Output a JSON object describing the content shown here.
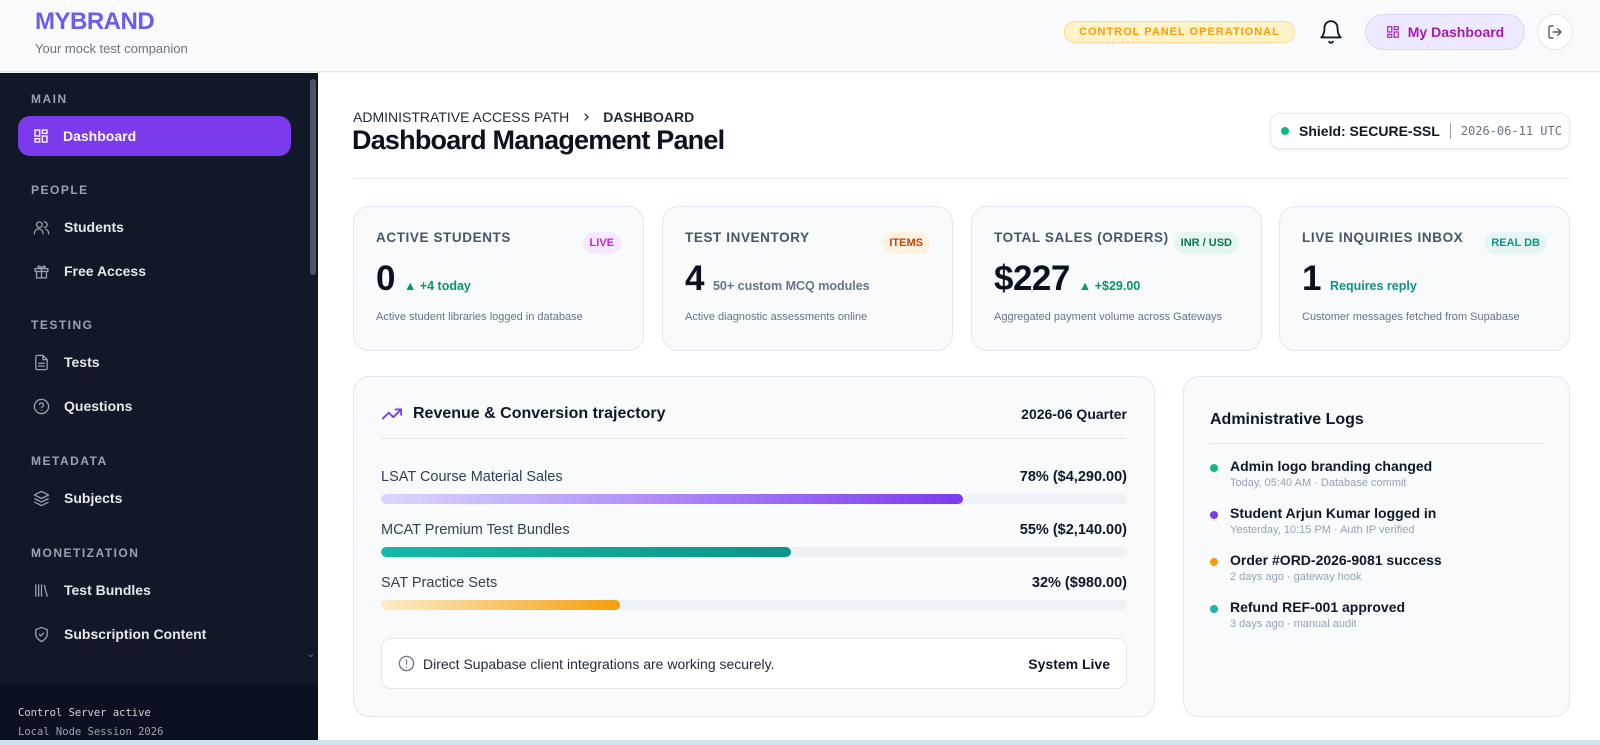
{
  "header": {
    "brand": "MYBRAND",
    "tagline": "Your mock test companion",
    "status": "CONTROL PANEL OPERATIONAL",
    "dashboard_button": "My Dashboard"
  },
  "sidebar": {
    "sections": [
      {
        "label": "MAIN",
        "items": [
          {
            "label": "Dashboard",
            "icon": "grid-icon",
            "active": true
          }
        ]
      },
      {
        "label": "PEOPLE",
        "items": [
          {
            "label": "Students",
            "icon": "users-icon"
          },
          {
            "label": "Free Access",
            "icon": "gift-icon"
          }
        ]
      },
      {
        "label": "TESTING",
        "items": [
          {
            "label": "Tests",
            "icon": "file-text-icon"
          },
          {
            "label": "Questions",
            "icon": "help-circle-icon"
          }
        ]
      },
      {
        "label": "METADATA",
        "items": [
          {
            "label": "Subjects",
            "icon": "layers-icon"
          }
        ]
      },
      {
        "label": "MONETIZATION",
        "items": [
          {
            "label": "Test Bundles",
            "icon": "library-icon"
          },
          {
            "label": "Subscription Content",
            "icon": "shield-icon"
          }
        ]
      }
    ],
    "footer_line1": "Control Server active",
    "footer_line2": "Local Node Session 2026"
  },
  "main": {
    "breadcrumb_root": "ADMINISTRATIVE ACCESS PATH",
    "breadcrumb_current": "DASHBOARD",
    "title": "Dashboard Management Panel",
    "shield_label": "Shield: SECURE-SSL",
    "shield_date": "2026-06-11 UTC"
  },
  "stats": [
    {
      "title": "ACTIVE STUDENTS",
      "badge": "LIVE",
      "badge_color": "#c026d3",
      "badge_bg": "#f5e8ff",
      "value": "0",
      "sub": "▲ +4 today",
      "sub_color": "#059669",
      "desc": "Active student libraries logged in database"
    },
    {
      "title": "TEST INVENTORY",
      "badge": "ITEMS",
      "badge_color": "#c2410c",
      "badge_bg": "#fff3e0",
      "value": "4",
      "sub": "50+ custom MCQ modules",
      "sub_color": "#64748b",
      "desc": "Active diagnostic assessments online"
    },
    {
      "title": "TOTAL SALES (ORDERS)",
      "badge": "INR / USD",
      "badge_color": "#047857",
      "badge_bg": "#e6f6ef",
      "value": "$227",
      "sub": "▲ +$29.00",
      "sub_color": "#059669",
      "desc": "Aggregated payment volume across Gateways"
    },
    {
      "title": "LIVE INQUIRIES INBOX",
      "badge": "REAL DB",
      "badge_color": "#0d9488",
      "badge_bg": "#e7f6f4",
      "value": "1",
      "sub": "Requires reply",
      "sub_color": "#0d9488",
      "desc": "Customer messages fetched from Supabase"
    }
  ],
  "revenue": {
    "title": "Revenue & Conversion trajectory",
    "period": "2026-06 Quarter",
    "bars": [
      {
        "label": "LSAT Course Material Sales",
        "value_text": "78% ($4,290.00)",
        "percent": 78,
        "color_from": "#ddd6fe",
        "color_to": "#7c3aed"
      },
      {
        "label": "MCAT Premium Test Bundles",
        "value_text": "55% ($2,140.00)",
        "percent": 55,
        "color_from": "#14b8a6",
        "color_to": "#0d9488"
      },
      {
        "label": "SAT Practice Sets",
        "value_text": "32% ($980.00)",
        "percent": 32,
        "color_from": "#fdecc8",
        "color_to": "#f59e0b"
      }
    ],
    "notice": "Direct Supabase client integrations are working securely.",
    "notice_status": "System Live"
  },
  "logs": {
    "title": "Administrative Logs",
    "entries": [
      {
        "title": "Admin logo branding changed",
        "meta": "Today, 05:40 AM · Database commit",
        "color": "#10b981"
      },
      {
        "title": "Student Arjun Kumar logged in",
        "meta": "Yesterday, 10:15 PM · Auth IP verified",
        "color": "#7c3aed"
      },
      {
        "title": "Order #ORD-2026-9081 success",
        "meta": "2 days ago · gateway hook",
        "color": "#f59e0b"
      },
      {
        "title": "Refund REF-001 approved",
        "meta": "3 days ago · manual audit",
        "color": "#14b8a6"
      }
    ]
  }
}
